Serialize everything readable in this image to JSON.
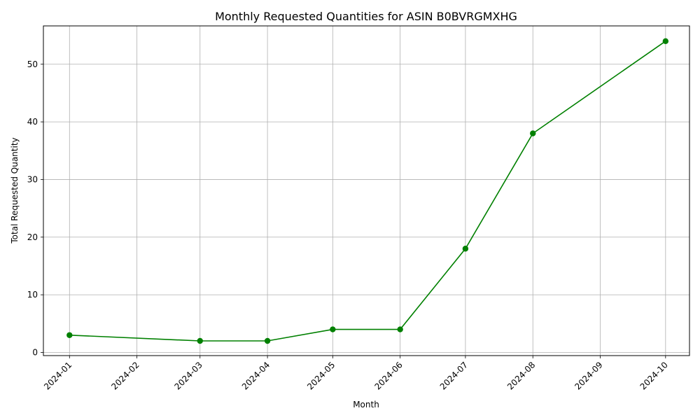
{
  "chart_data": {
    "type": "line",
    "title": "Monthly Requested Quantities for ASIN B0BVRGMXHG",
    "xlabel": "Month",
    "ylabel": "Total Requested Quantity",
    "x": [
      "2024-01",
      "2024-03",
      "2024-04",
      "2024-05",
      "2024-06",
      "2024-07",
      "2024-08",
      "2024-10"
    ],
    "x_ticks": [
      "2024-01",
      "2024-02",
      "2024-03",
      "2024-04",
      "2024-05",
      "2024-06",
      "2024-07",
      "2024-08",
      "2024-09",
      "2024-10"
    ],
    "series": [
      {
        "values": [
          3,
          2,
          2,
          4,
          4,
          18,
          38,
          54
        ],
        "color": "#008000",
        "marker": "circle"
      }
    ],
    "y_ticks": [
      0,
      10,
      20,
      30,
      40,
      50
    ],
    "ylim": [
      -0.55,
      56.65
    ],
    "xlim": [
      "2023-12-20",
      "2024-10-12"
    ],
    "grid": true,
    "x_tick_rotation": 45
  }
}
